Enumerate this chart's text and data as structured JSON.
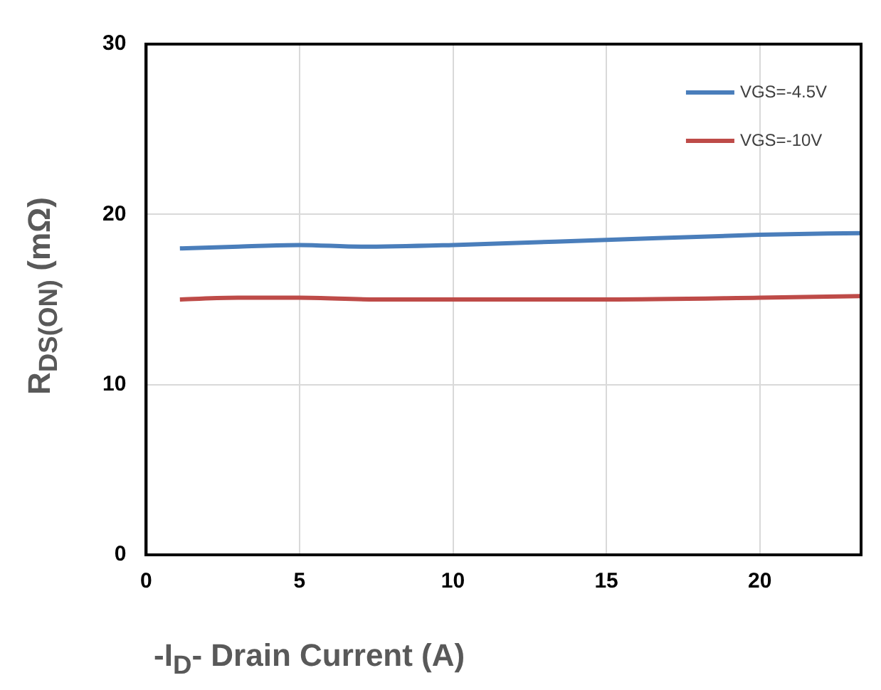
{
  "chart_data": {
    "type": "line",
    "xlabel": "-I$_{D}$- Drain Current (A)",
    "ylabel": "R$_{DS(ON)}$ (mΩ)",
    "xlim": [
      0,
      23.3
    ],
    "xticks": [
      0,
      5,
      10,
      15,
      20
    ],
    "ylim": [
      0,
      30
    ],
    "yticks": [
      0,
      10,
      20,
      30
    ],
    "grid": true,
    "legend": "top right",
    "line_style": "solid",
    "series": [
      {
        "name": "VGS=-4.5V",
        "color": "#4a7ebb",
        "x": [
          1.1,
          3,
          5,
          7,
          10,
          15,
          20,
          23.3
        ],
        "values": [
          18.0,
          18.1,
          18.2,
          18.1,
          18.2,
          18.5,
          18.8,
          18.9
        ]
      },
      {
        "name": "VGS=-10V",
        "color": "#be4b48",
        "x": [
          1.1,
          3,
          5,
          7.5,
          10,
          15,
          20,
          23.3
        ],
        "values": [
          15.0,
          15.1,
          15.1,
          15.0,
          15.0,
          15.0,
          15.1,
          15.2
        ]
      }
    ]
  }
}
